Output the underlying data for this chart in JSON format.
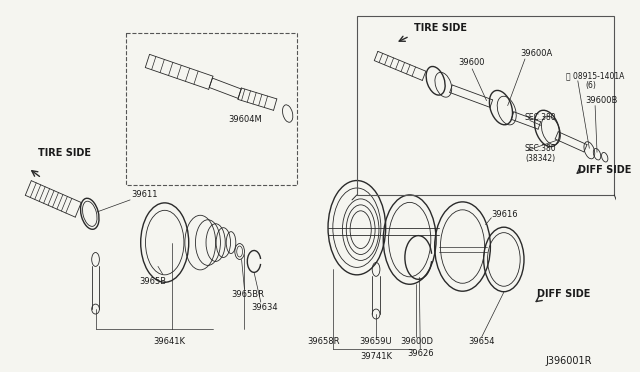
{
  "bg_color": "#f5f5f0",
  "line_color": "#2a2a2a",
  "text_color": "#1a1a1a",
  "fs_part": 6.0,
  "fs_label": 7.0,
  "diagram_id": "J396001R",
  "figsize": [
    6.4,
    3.72
  ],
  "dpi": 100,
  "xlim": [
    0,
    640
  ],
  "ylim": [
    0,
    372
  ]
}
